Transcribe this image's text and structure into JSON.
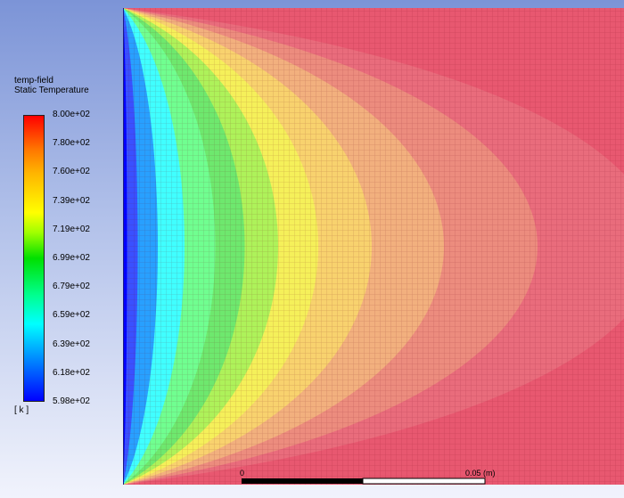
{
  "legend": {
    "title": "temp-field",
    "subtitle": "Static Temperature",
    "unit": "[ k ]",
    "ticks": [
      "8.00e+02",
      "7.80e+02",
      "7.60e+02",
      "7.39e+02",
      "7.19e+02",
      "6.99e+02",
      "6.79e+02",
      "6.59e+02",
      "6.39e+02",
      "6.18e+02",
      "5.98e+02"
    ],
    "placement": "left"
  },
  "scale_bar": {
    "start_label": "0",
    "end_label": "0.05 (m)"
  },
  "chart_data": {
    "type": "heatmap",
    "title": "temp-field",
    "subtitle": "Static Temperature",
    "field": "Static Temperature",
    "unit": "k",
    "range": [
      598,
      800
    ],
    "colormap": [
      "#0000ff",
      "#0096ff",
      "#00ffff",
      "#00ff90",
      "#00e000",
      "#a0ff00",
      "#ffff00",
      "#ffb400",
      "#ff7800",
      "#ff0000"
    ],
    "levels": [
      598,
      618,
      639,
      659,
      679,
      699,
      719,
      739,
      760,
      780,
      800
    ],
    "mesh_visible": true,
    "scale_bar_length_m": 0.05
  }
}
